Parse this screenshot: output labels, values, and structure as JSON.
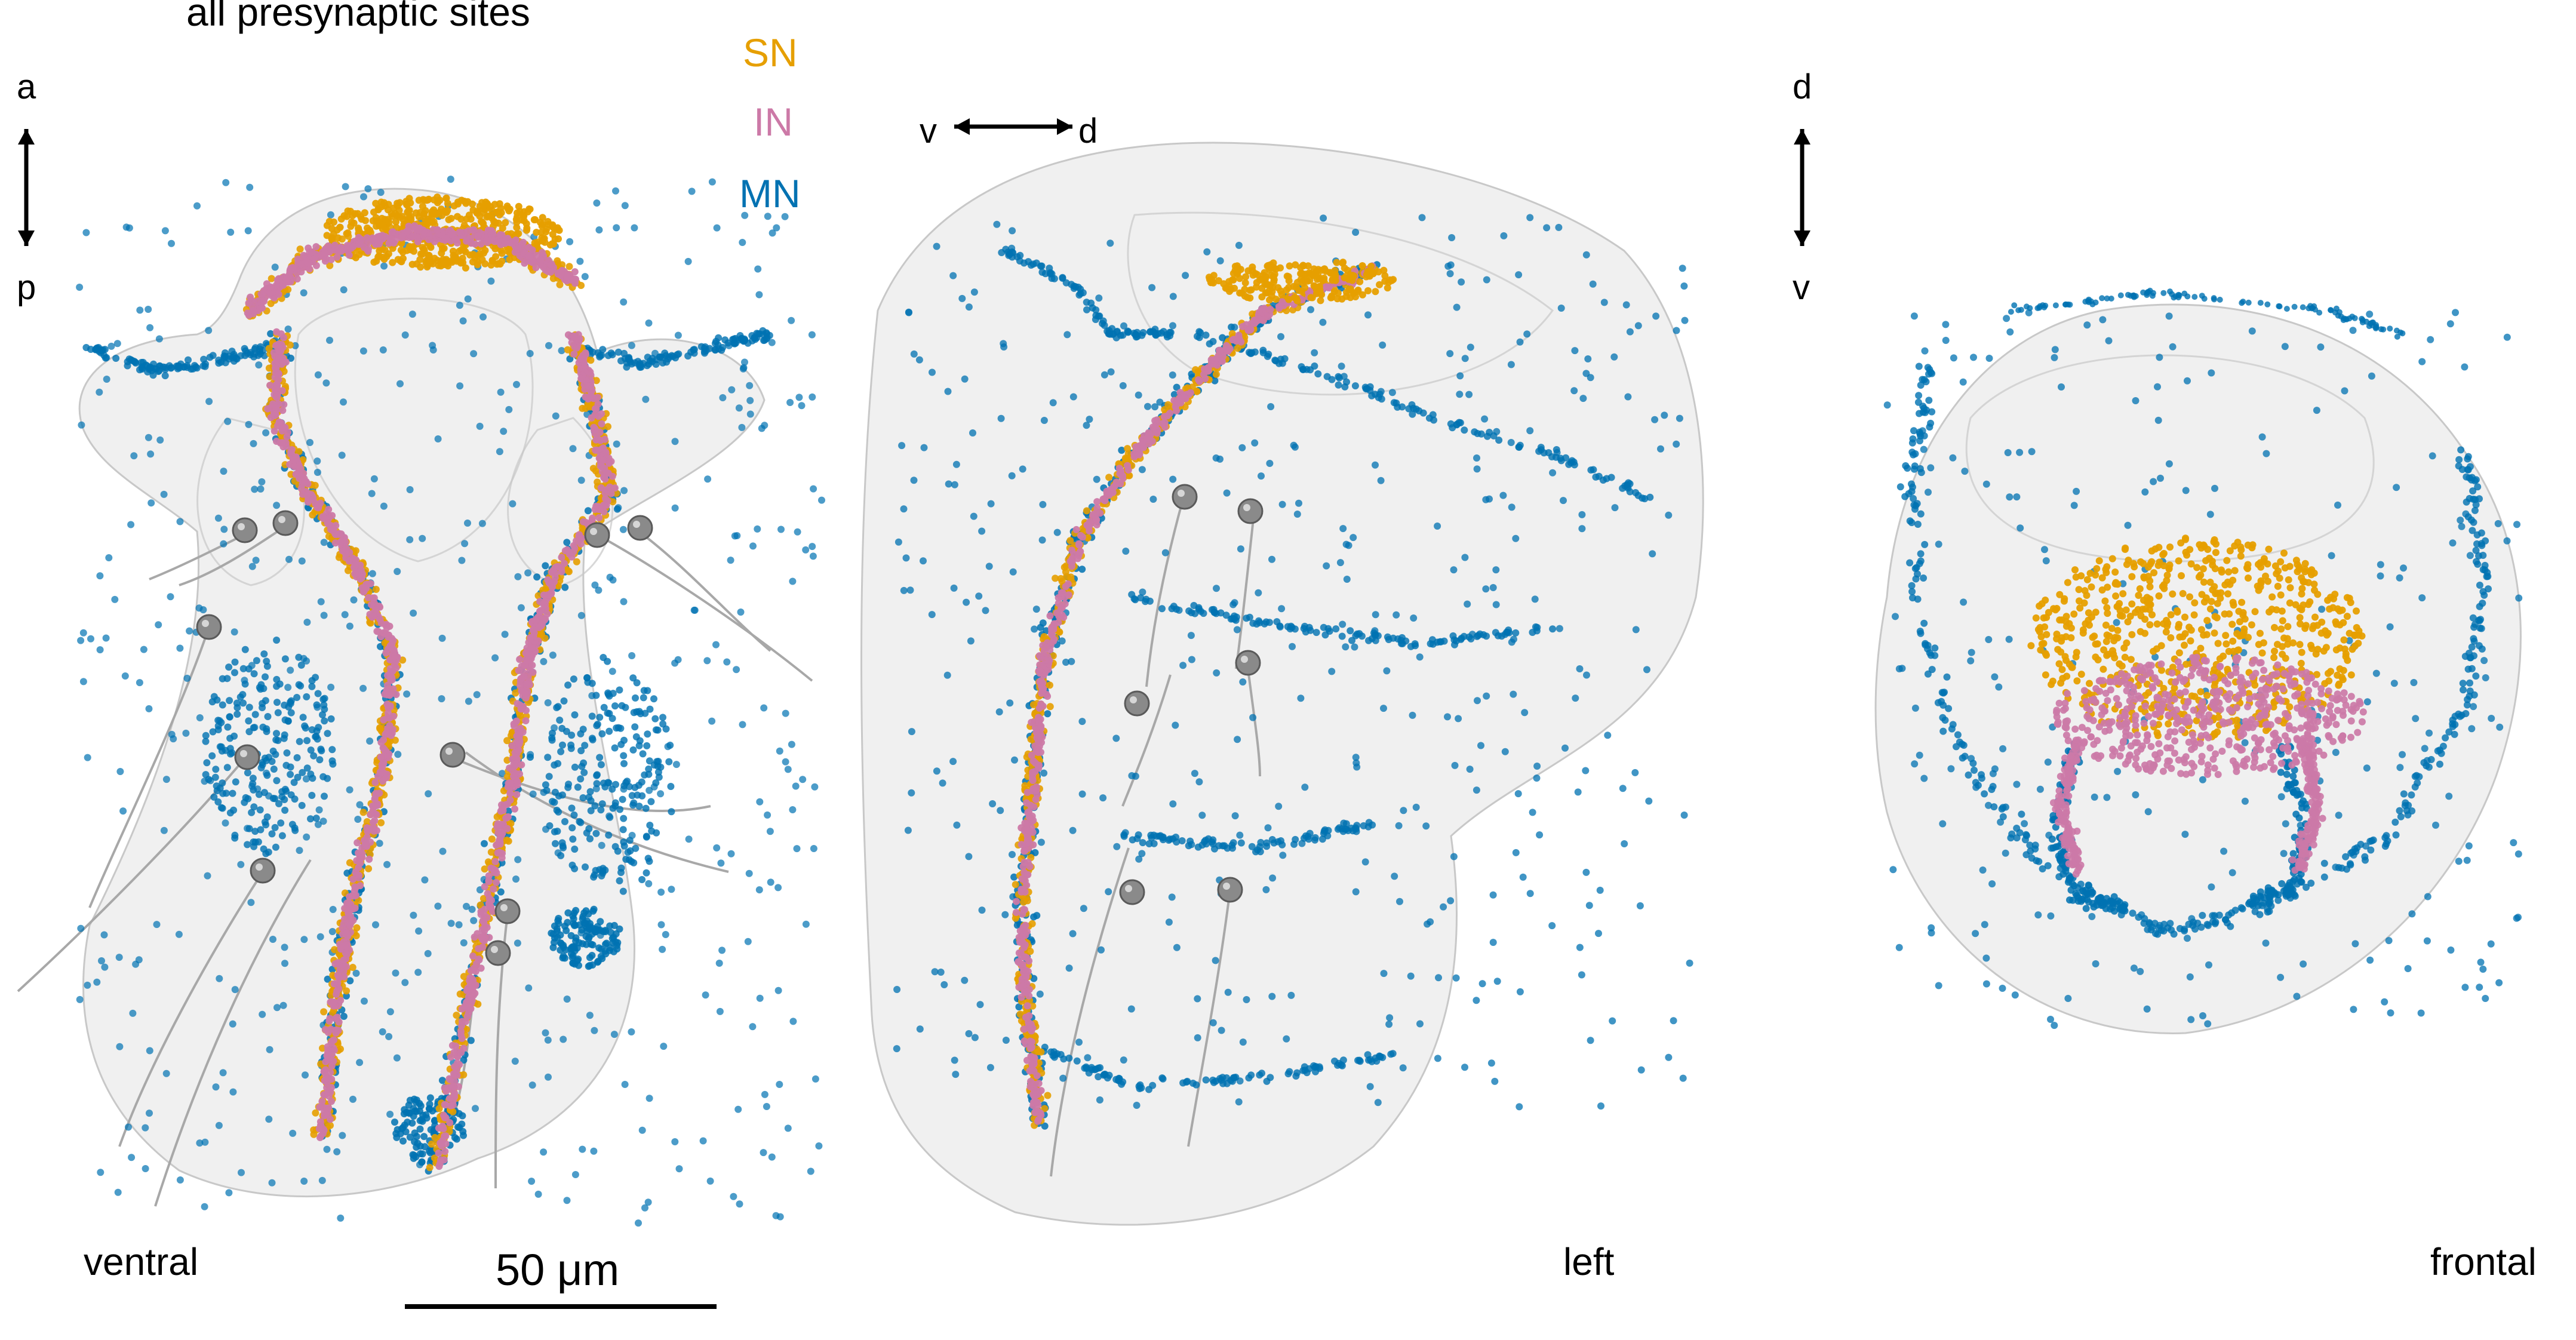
{
  "title": "all presynaptic sites",
  "legend": [
    {
      "label": "SN",
      "color": "#E69F00"
    },
    {
      "label": "IN",
      "color": "#CC79A7"
    },
    {
      "label": "MN",
      "color": "#0072B2"
    }
  ],
  "axes": {
    "ventral": {
      "top": "a",
      "bottom": "p"
    },
    "left": {
      "left": "v",
      "right": "d"
    },
    "frontal": {
      "top": "d",
      "bottom": "v"
    }
  },
  "panels": {
    "ventral": "ventral",
    "left": "left",
    "frontal": "frontal"
  },
  "scale_bar": {
    "label": "50 μm"
  },
  "colors": {
    "body_fill": "#e3e3e3",
    "body_stroke": "#c8c8c8",
    "cell_body": "#8a8a8a",
    "cilia": "#a8a8a8"
  }
}
